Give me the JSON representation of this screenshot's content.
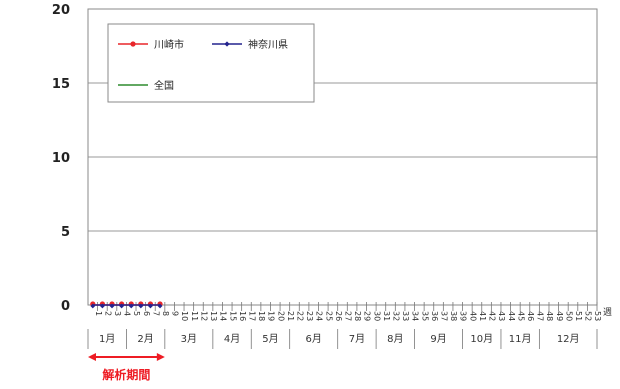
{
  "chart_data": {
    "type": "line",
    "y_axis": {
      "min": 0,
      "max": 20,
      "ticks": [
        0,
        5,
        10,
        15,
        20
      ]
    },
    "x_axis": {
      "unit_label": "週",
      "weeks": [
        "1",
        "2",
        "3",
        "4",
        "5",
        "6",
        "7",
        "8",
        "9",
        "10",
        "11",
        "12",
        "13",
        "14",
        "15",
        "16",
        "17",
        "18",
        "19",
        "20",
        "21",
        "22",
        "23",
        "24",
        "25",
        "26",
        "27",
        "28",
        "29",
        "30",
        "31",
        "32",
        "33",
        "34",
        "35",
        "36",
        "37",
        "38",
        "39",
        "40",
        "41",
        "42",
        "43",
        "44",
        "45",
        "46",
        "47",
        "48",
        "49",
        "50",
        "51",
        "52",
        "53"
      ],
      "months": [
        {
          "label": "1月",
          "weeks": 4
        },
        {
          "label": "2月",
          "weeks": 4
        },
        {
          "label": "3月",
          "weeks": 5
        },
        {
          "label": "4月",
          "weeks": 4
        },
        {
          "label": "5月",
          "weeks": 4
        },
        {
          "label": "6月",
          "weeks": 5
        },
        {
          "label": "7月",
          "weeks": 4
        },
        {
          "label": "8月",
          "weeks": 4
        },
        {
          "label": "9月",
          "weeks": 5
        },
        {
          "label": "10月",
          "weeks": 4
        },
        {
          "label": "11月",
          "weeks": 4
        },
        {
          "label": "12月",
          "weeks": 6
        }
      ]
    },
    "grid": true,
    "legend": {
      "placement": "top-left"
    },
    "series": [
      {
        "name": "川崎市",
        "color": "#e8262a",
        "marker": "circle",
        "line": true,
        "values": [
          0,
          0,
          0,
          0,
          0,
          0,
          0,
          0
        ]
      },
      {
        "name": "神奈川県",
        "color": "#23238e",
        "marker": "diamond",
        "line": true,
        "values": [
          0,
          0,
          0,
          0,
          0,
          0,
          0,
          0
        ]
      },
      {
        "name": "全国",
        "color": "#2e8b2e",
        "marker": "none",
        "line": true,
        "values": []
      }
    ],
    "annotation": {
      "label": "解析期間",
      "from_week": 1,
      "to_week": 8,
      "color": "#ee1c24"
    }
  }
}
